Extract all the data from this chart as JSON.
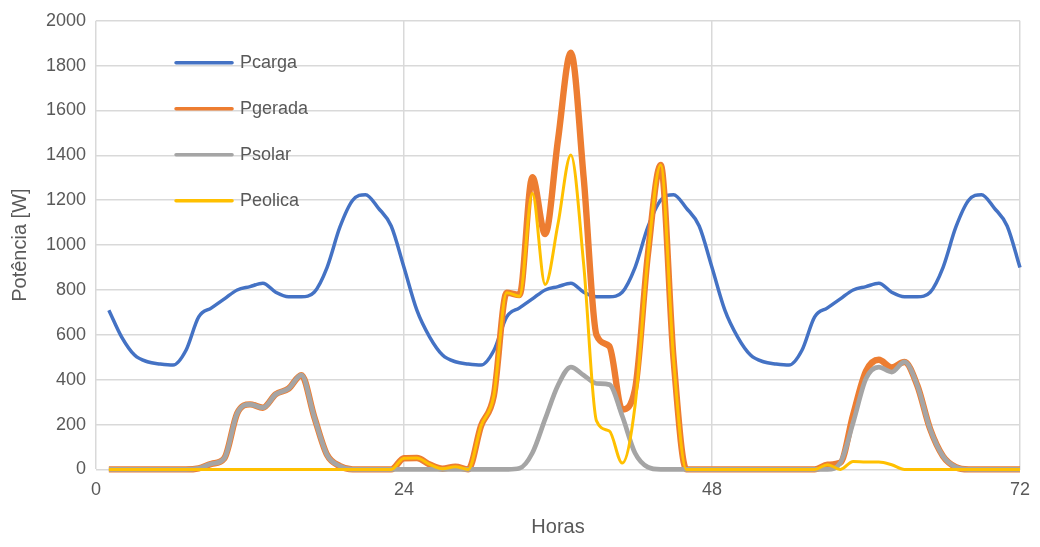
{
  "chart_data": {
    "type": "line",
    "xlabel": "Horas",
    "ylabel": "Potência [W]",
    "x": [
      1,
      2,
      3,
      4,
      5,
      6,
      7,
      8,
      9,
      10,
      11,
      12,
      13,
      14,
      15,
      16,
      17,
      18,
      19,
      20,
      21,
      22,
      23,
      24,
      25,
      26,
      27,
      28,
      29,
      30,
      31,
      32,
      33,
      34,
      35,
      36,
      37,
      38,
      39,
      40,
      41,
      42,
      43,
      44,
      45,
      46,
      47,
      48,
      49,
      50,
      51,
      52,
      53,
      54,
      55,
      56,
      57,
      58,
      59,
      60,
      61,
      62,
      63,
      64,
      65,
      66,
      67,
      68,
      69,
      70,
      71,
      72
    ],
    "xlim": [
      0,
      72
    ],
    "xticks": [
      0,
      24,
      48,
      72
    ],
    "ylim": [
      0,
      2000
    ],
    "yticks": [
      0,
      200,
      400,
      600,
      800,
      1000,
      1200,
      1400,
      1600,
      1800,
      2000
    ],
    "grid": true,
    "legend": "top left",
    "marker": "none",
    "line_style": "solid",
    "series": [
      {
        "name": "Pcarga",
        "color": "#4472c4",
        "values": [
          710,
          590,
          510,
          480,
          470,
          465,
          530,
          680,
          720,
          760,
          800,
          815,
          830,
          790,
          770,
          770,
          790,
          900,
          1080,
          1200,
          1225,
          1165,
          1085,
          900,
          710,
          590,
          510,
          480,
          470,
          465,
          530,
          680,
          720,
          760,
          800,
          815,
          830,
          790,
          770,
          770,
          790,
          900,
          1080,
          1200,
          1225,
          1165,
          1085,
          900,
          710,
          590,
          510,
          480,
          470,
          465,
          530,
          680,
          720,
          760,
          800,
          815,
          830,
          790,
          770,
          770,
          790,
          900,
          1080,
          1200,
          1225,
          1165,
          1085,
          900
        ]
      },
      {
        "name": "Pgerada",
        "color": "#ed7d31",
        "values": [
          0,
          0,
          0,
          0,
          0,
          0,
          0,
          5,
          25,
          50,
          250,
          290,
          275,
          335,
          360,
          420,
          235,
          65,
          15,
          0,
          0,
          0,
          0,
          50,
          51,
          22,
          3,
          12,
          0,
          194,
          329,
          788,
          777,
          1303,
          1049,
          1470,
          1858,
          1300,
          599,
          549,
          267,
          357,
          956,
          1357,
          495,
          0,
          0,
          0,
          0,
          0,
          0,
          0,
          0,
          0,
          0,
          0,
          21,
          30,
          244,
          438,
          489,
          455,
          479,
          374,
          180,
          59,
          10,
          0,
          0,
          0,
          0,
          0
        ]
      },
      {
        "name": "Psolar",
        "color": "#a5a5a5",
        "values": [
          0,
          0,
          0,
          0,
          0,
          0,
          0,
          5,
          25,
          50,
          250,
          290,
          275,
          335,
          360,
          420,
          235,
          65,
          15,
          0,
          0,
          0,
          0,
          0,
          0,
          0,
          0,
          0,
          0,
          0,
          0,
          0,
          5,
          73,
          225,
          375,
          456,
          420,
          383,
          378,
          239,
          73,
          10,
          0,
          0,
          0,
          0,
          0,
          0,
          0,
          0,
          0,
          0,
          0,
          0,
          0,
          0,
          30,
          209,
          405,
          456,
          434,
          479,
          374,
          180,
          59,
          10,
          0,
          0,
          0,
          0,
          0
        ]
      },
      {
        "name": "Peolica",
        "color": "#ffc000",
        "values": [
          0,
          0,
          0,
          0,
          0,
          0,
          0,
          0,
          0,
          0,
          0,
          0,
          0,
          0,
          0,
          0,
          0,
          0,
          0,
          0,
          0,
          0,
          0,
          50,
          51,
          22,
          3,
          12,
          0,
          194,
          329,
          788,
          772,
          1230,
          824,
          1095,
          1402,
          914,
          216,
          171,
          28,
          284,
          946,
          1357,
          495,
          0,
          0,
          0,
          0,
          0,
          0,
          0,
          0,
          0,
          0,
          0,
          21,
          0,
          35,
          33,
          33,
          21,
          0,
          0,
          0,
          0,
          0,
          0,
          0,
          0,
          0,
          0
        ]
      }
    ]
  }
}
